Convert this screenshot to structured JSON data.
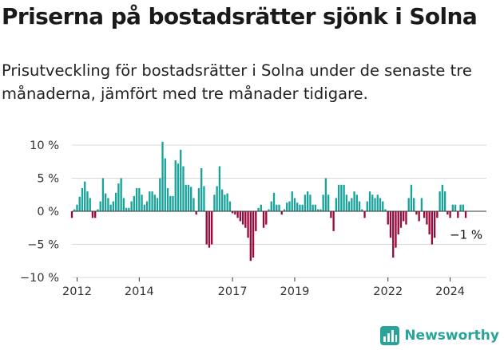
{
  "header": {
    "title": "Priserna på bostadsrätter sjönk i Solna",
    "subtitle": "Prisutveckling för bostadsrätter i Solna under de senaste tre månaderna, jämfört med tre månader tidigare."
  },
  "brand": {
    "name": "Newsworthy",
    "icon": "bar-chart-logo-icon",
    "color": "#2aa39a"
  },
  "colors": {
    "positive": "#1aa39a",
    "negative": "#990a3d",
    "grid": "#d9d9d9",
    "zero": "#333333"
  },
  "chart_data": {
    "type": "bar",
    "title": "Priserna på bostadsrätter sjönk i Solna",
    "xlabel": "",
    "ylabel": "",
    "ylim": [
      -10,
      10
    ],
    "y_ticks": [
      10,
      5,
      0,
      -5,
      -10
    ],
    "y_tick_labels": [
      "10 %",
      "5 %",
      "0 %",
      "−5 %",
      "−10 %"
    ],
    "x_ticks": [
      "2012",
      "2014",
      "2017",
      "2019",
      "2022",
      "2024"
    ],
    "x_range": [
      "2011-11",
      "2025-03"
    ],
    "grid": true,
    "end_label": "−1 %",
    "series": [
      {
        "values": [
          {
            "x": "2011-11",
            "y": -1.0
          },
          {
            "x": "2011-12",
            "y": 0.3
          },
          {
            "x": "2012-01",
            "y": 1.0
          },
          {
            "x": "2012-02",
            "y": 2.2
          },
          {
            "x": "2012-03",
            "y": 3.5
          },
          {
            "x": "2012-04",
            "y": 4.5
          },
          {
            "x": "2012-05",
            "y": 3.0
          },
          {
            "x": "2012-06",
            "y": 2.0
          },
          {
            "x": "2012-07",
            "y": -1.0
          },
          {
            "x": "2012-08",
            "y": -1.0
          },
          {
            "x": "2012-09",
            "y": 0.3
          },
          {
            "x": "2012-10",
            "y": 1.5
          },
          {
            "x": "2012-11",
            "y": 5.0
          },
          {
            "x": "2012-12",
            "y": 2.7
          },
          {
            "x": "2013-01",
            "y": 2.0
          },
          {
            "x": "2013-02",
            "y": 1.0
          },
          {
            "x": "2013-03",
            "y": 1.5
          },
          {
            "x": "2013-04",
            "y": 2.8
          },
          {
            "x": "2013-05",
            "y": 4.2
          },
          {
            "x": "2013-06",
            "y": 5.0
          },
          {
            "x": "2013-07",
            "y": 2.0
          },
          {
            "x": "2013-08",
            "y": 0.5
          },
          {
            "x": "2013-09",
            "y": 0.5
          },
          {
            "x": "2013-10",
            "y": 1.5
          },
          {
            "x": "2013-11",
            "y": 2.3
          },
          {
            "x": "2013-12",
            "y": 3.5
          },
          {
            "x": "2014-01",
            "y": 3.5
          },
          {
            "x": "2014-02",
            "y": 2.5
          },
          {
            "x": "2014-03",
            "y": 1.0
          },
          {
            "x": "2014-04",
            "y": 1.5
          },
          {
            "x": "2014-05",
            "y": 3.0
          },
          {
            "x": "2014-06",
            "y": 3.0
          },
          {
            "x": "2014-07",
            "y": 2.5
          },
          {
            "x": "2014-08",
            "y": 2.0
          },
          {
            "x": "2014-09",
            "y": 5.0
          },
          {
            "x": "2014-10",
            "y": 10.5
          },
          {
            "x": "2014-11",
            "y": 8.0
          },
          {
            "x": "2014-12",
            "y": 3.5
          },
          {
            "x": "2015-01",
            "y": 2.3
          },
          {
            "x": "2015-02",
            "y": 2.3
          },
          {
            "x": "2015-03",
            "y": 7.7
          },
          {
            "x": "2015-04",
            "y": 7.2
          },
          {
            "x": "2015-05",
            "y": 9.3
          },
          {
            "x": "2015-06",
            "y": 6.8
          },
          {
            "x": "2015-07",
            "y": 4.0
          },
          {
            "x": "2015-08",
            "y": 4.0
          },
          {
            "x": "2015-09",
            "y": 3.7
          },
          {
            "x": "2015-10",
            "y": 2.0
          },
          {
            "x": "2015-11",
            "y": -0.5
          },
          {
            "x": "2015-12",
            "y": 3.5
          },
          {
            "x": "2016-01",
            "y": 6.5
          },
          {
            "x": "2016-02",
            "y": 3.8
          },
          {
            "x": "2016-03",
            "y": -5.0
          },
          {
            "x": "2016-04",
            "y": -5.5
          },
          {
            "x": "2016-05",
            "y": -5.0
          },
          {
            "x": "2016-06",
            "y": 2.5
          },
          {
            "x": "2016-07",
            "y": 3.8
          },
          {
            "x": "2016-08",
            "y": 6.8
          },
          {
            "x": "2016-09",
            "y": 3.3
          },
          {
            "x": "2016-10",
            "y": 2.5
          },
          {
            "x": "2016-11",
            "y": 2.7
          },
          {
            "x": "2016-12",
            "y": 1.5
          },
          {
            "x": "2017-01",
            "y": -0.3
          },
          {
            "x": "2017-02",
            "y": -0.5
          },
          {
            "x": "2017-03",
            "y": -1.0
          },
          {
            "x": "2017-04",
            "y": -1.5
          },
          {
            "x": "2017-05",
            "y": -2.0
          },
          {
            "x": "2017-06",
            "y": -2.5
          },
          {
            "x": "2017-07",
            "y": -4.0
          },
          {
            "x": "2017-08",
            "y": -7.5
          },
          {
            "x": "2017-09",
            "y": -7.0
          },
          {
            "x": "2017-10",
            "y": -3.0
          },
          {
            "x": "2017-11",
            "y": 0.5
          },
          {
            "x": "2017-12",
            "y": 1.0
          },
          {
            "x": "2018-01",
            "y": -2.5
          },
          {
            "x": "2018-02",
            "y": -2.0
          },
          {
            "x": "2018-03",
            "y": 0.3
          },
          {
            "x": "2018-04",
            "y": 1.5
          },
          {
            "x": "2018-05",
            "y": 2.8
          },
          {
            "x": "2018-06",
            "y": 1.0
          },
          {
            "x": "2018-07",
            "y": 1.0
          },
          {
            "x": "2018-08",
            "y": -0.5
          },
          {
            "x": "2018-09",
            "y": 0.3
          },
          {
            "x": "2018-10",
            "y": 1.3
          },
          {
            "x": "2018-11",
            "y": 1.5
          },
          {
            "x": "2018-12",
            "y": 3.0
          },
          {
            "x": "2019-01",
            "y": 2.0
          },
          {
            "x": "2019-02",
            "y": 1.3
          },
          {
            "x": "2019-03",
            "y": 1.0
          },
          {
            "x": "2019-04",
            "y": 1.0
          },
          {
            "x": "2019-05",
            "y": 2.5
          },
          {
            "x": "2019-06",
            "y": 3.0
          },
          {
            "x": "2019-07",
            "y": 2.5
          },
          {
            "x": "2019-08",
            "y": 1.0
          },
          {
            "x": "2019-09",
            "y": 1.0
          },
          {
            "x": "2019-10",
            "y": 0.3
          },
          {
            "x": "2019-11",
            "y": 0.3
          },
          {
            "x": "2019-12",
            "y": 2.5
          },
          {
            "x": "2020-01",
            "y": 5.0
          },
          {
            "x": "2020-02",
            "y": 2.5
          },
          {
            "x": "2020-03",
            "y": -1.0
          },
          {
            "x": "2020-04",
            "y": -3.0
          },
          {
            "x": "2020-05",
            "y": 2.0
          },
          {
            "x": "2020-06",
            "y": 4.0
          },
          {
            "x": "2020-07",
            "y": 4.0
          },
          {
            "x": "2020-08",
            "y": 4.0
          },
          {
            "x": "2020-09",
            "y": 2.5
          },
          {
            "x": "2020-10",
            "y": 1.5
          },
          {
            "x": "2020-11",
            "y": 2.0
          },
          {
            "x": "2020-12",
            "y": 3.0
          },
          {
            "x": "2021-01",
            "y": 2.5
          },
          {
            "x": "2021-02",
            "y": 1.5
          },
          {
            "x": "2021-03",
            "y": 0.3
          },
          {
            "x": "2021-04",
            "y": -1.0
          },
          {
            "x": "2021-05",
            "y": 1.5
          },
          {
            "x": "2021-06",
            "y": 3.0
          },
          {
            "x": "2021-07",
            "y": 2.5
          },
          {
            "x": "2021-08",
            "y": 2.0
          },
          {
            "x": "2021-09",
            "y": 2.5
          },
          {
            "x": "2021-10",
            "y": 2.0
          },
          {
            "x": "2021-11",
            "y": 1.5
          },
          {
            "x": "2021-12",
            "y": 0.3
          },
          {
            "x": "2022-01",
            "y": -2.0
          },
          {
            "x": "2022-02",
            "y": -4.0
          },
          {
            "x": "2022-03",
            "y": -7.0
          },
          {
            "x": "2022-04",
            "y": -5.5
          },
          {
            "x": "2022-05",
            "y": -3.5
          },
          {
            "x": "2022-06",
            "y": -2.5
          },
          {
            "x": "2022-07",
            "y": -1.5
          },
          {
            "x": "2022-08",
            "y": -2.0
          },
          {
            "x": "2022-09",
            "y": 2.0
          },
          {
            "x": "2022-10",
            "y": 4.0
          },
          {
            "x": "2022-11",
            "y": 2.0
          },
          {
            "x": "2022-12",
            "y": -0.5
          },
          {
            "x": "2023-01",
            "y": -1.5
          },
          {
            "x": "2023-02",
            "y": 2.0
          },
          {
            "x": "2023-03",
            "y": -1.0
          },
          {
            "x": "2023-04",
            "y": -2.0
          },
          {
            "x": "2023-05",
            "y": -3.5
          },
          {
            "x": "2023-06",
            "y": -5.0
          },
          {
            "x": "2023-07",
            "y": -4.0
          },
          {
            "x": "2023-08",
            "y": -1.0
          },
          {
            "x": "2023-09",
            "y": 3.0
          },
          {
            "x": "2023-10",
            "y": 4.0
          },
          {
            "x": "2023-11",
            "y": 3.0
          },
          {
            "x": "2023-12",
            "y": -0.5
          },
          {
            "x": "2024-01",
            "y": -1.0
          },
          {
            "x": "2024-02",
            "y": 1.0
          },
          {
            "x": "2024-03",
            "y": 1.0
          },
          {
            "x": "2024-04",
            "y": -1.0
          },
          {
            "x": "2024-05",
            "y": 1.0
          },
          {
            "x": "2024-06",
            "y": 1.0
          },
          {
            "x": "2024-07",
            "y": -1.0
          }
        ]
      }
    ]
  }
}
